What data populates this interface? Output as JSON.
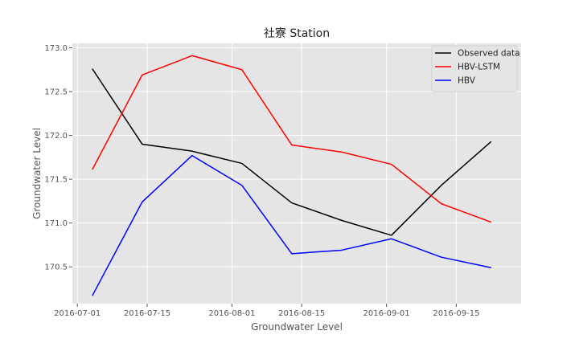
{
  "chart_data": {
    "type": "line",
    "title": "社寮 Station",
    "xlabel": "Groundwater Level",
    "ylabel": "Groundwater Level",
    "x_type": "date",
    "xlim": [
      "2016-06-30",
      "2016-09-28"
    ],
    "ylim": [
      170.08,
      173.05
    ],
    "x_ticks": [
      "2016-07-01",
      "2016-07-15",
      "2016-08-01",
      "2016-08-15",
      "2016-09-01",
      "2016-09-15"
    ],
    "y_ticks": [
      170.5,
      171.0,
      171.5,
      172.0,
      172.5,
      173.0
    ],
    "y_tick_labels": [
      "170.5",
      "171.0",
      "171.5",
      "172.0",
      "172.5",
      "173.0"
    ],
    "grid": true,
    "legend_position": "top-right",
    "x": [
      "2016-07-04",
      "2016-07-14",
      "2016-07-24",
      "2016-08-03",
      "2016-08-13",
      "2016-08-23",
      "2016-09-02",
      "2016-09-12",
      "2016-09-22"
    ],
    "series": [
      {
        "name": "Observed data",
        "color": "#000000",
        "values": [
          172.76,
          171.9,
          171.82,
          171.68,
          171.23,
          171.03,
          170.86,
          171.43,
          171.93
        ]
      },
      {
        "name": "HBV-LSTM",
        "color": "#ff0000",
        "values": [
          171.61,
          172.69,
          172.91,
          172.75,
          171.89,
          171.81,
          171.67,
          171.22,
          171.01
        ]
      },
      {
        "name": "HBV",
        "color": "#0000ff",
        "values": [
          170.17,
          171.24,
          171.77,
          171.43,
          170.65,
          170.69,
          170.82,
          170.61,
          170.49
        ]
      }
    ]
  }
}
